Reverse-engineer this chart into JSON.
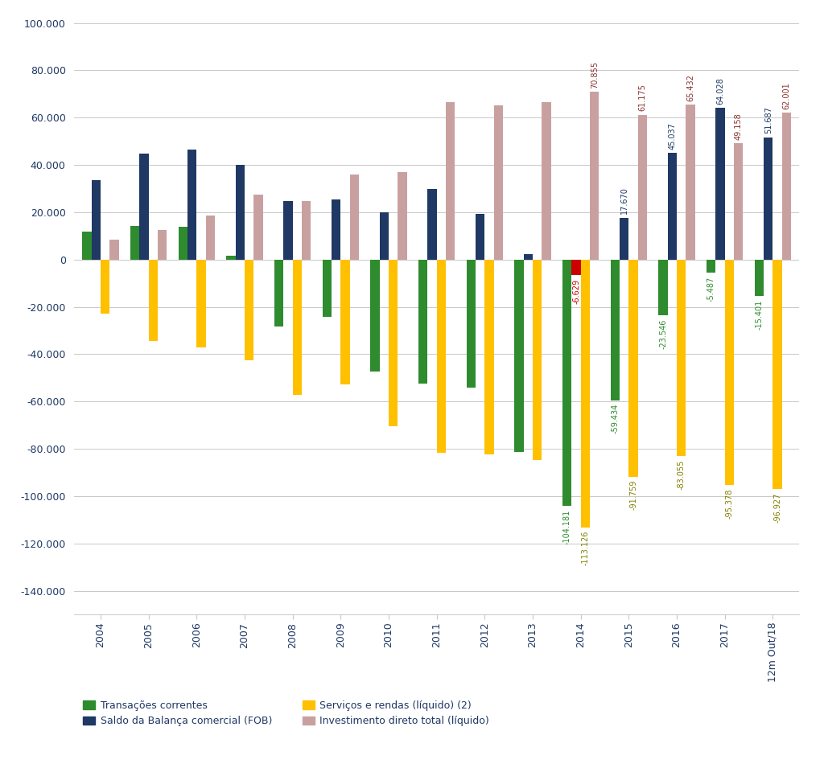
{
  "years": [
    "2004",
    "2005",
    "2006",
    "2007",
    "2008",
    "2009",
    "2010",
    "2011",
    "2012",
    "2013",
    "2014",
    "2015",
    "2016",
    "2017",
    "12m Out/18"
  ],
  "transacoes_correntes": [
    11679,
    14156,
    13985,
    1551,
    -28192,
    -24302,
    -47273,
    -52480,
    -54228,
    -81374,
    -104181,
    -59434,
    -23546,
    -5487,
    -15401
  ],
  "saldo_balanca": [
    33641,
    44757,
    46457,
    40031,
    24836,
    25290,
    20147,
    29793,
    19395,
    2286,
    -6629,
    17670,
    45037,
    64028,
    51687
  ],
  "servicos_rendas": [
    -22995,
    -34276,
    -37219,
    -42510,
    -57252,
    -52930,
    -70322,
    -81655,
    -82424,
    -84889,
    -113126,
    -91759,
    -83055,
    -95378,
    -96927
  ],
  "investimento_direto": [
    8339,
    12550,
    18782,
    27518,
    24601,
    36033,
    36919,
    66660,
    65272,
    66664,
    70855,
    61175,
    65432,
    49158,
    62001
  ],
  "colors": {
    "transacoes": "#2E8B2E",
    "balanca": "#1F3864",
    "servicos": "#FFC000",
    "investimento": "#C9A0A0"
  },
  "label_colors": {
    "transacoes": "#2E8B2E",
    "balanca": "#1F3864",
    "servicos": "#808000",
    "investimento": "#8B3030"
  },
  "special_2014_color": "#CC0000",
  "special_2014_label_color": "#CC0000",
  "ylim": [
    -150000,
    100000
  ],
  "yticks": [
    -140000,
    -120000,
    -100000,
    -80000,
    -60000,
    -40000,
    -20000,
    0,
    20000,
    40000,
    60000,
    80000,
    100000
  ],
  "legend_labels": [
    "Transações correntes",
    "Saldo da Balança comercial (FOB)",
    "Serviços e rendas (líquido) (2)",
    "Investimento direto total (líquido)"
  ],
  "bar_width": 0.19,
  "annotate_from_index": 10,
  "tick_color": "#1F3864",
  "grid_color": "#C8C8C8",
  "label_fontsize": 7.0
}
